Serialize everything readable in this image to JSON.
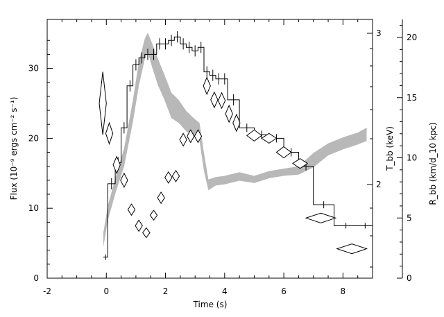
{
  "chart_data": {
    "type": "line",
    "title": "",
    "xlabel": "Time (s)",
    "xlim": [
      -2,
      9
    ],
    "xticks": [
      "-2",
      "0",
      "2",
      "4",
      "6",
      "8"
    ],
    "ylabel_left": "Flux (10⁻⁹ ergs cm⁻² s⁻¹)",
    "ylim_left": [
      0,
      37
    ],
    "yticks_left": [
      "0",
      "10",
      "20",
      "30"
    ],
    "ylabel_right_inner": "T_bb (keV)",
    "yticks_right_inner": [
      "2",
      "3"
    ],
    "yticks_right_inner_values": [
      2,
      3
    ],
    "ylabel_right_outer": "R_bb (km/d_10 kpc)",
    "ylim_right_outer": [
      0,
      21.5
    ],
    "yticks_right_outer": [
      "0",
      "5",
      "10",
      "15",
      "20"
    ],
    "series": [
      {
        "kind": "flux-histogram",
        "t_edges": [
          -0.1,
          0.05,
          0.3,
          0.5,
          0.7,
          0.9,
          1.1,
          1.3,
          1.5,
          1.7,
          1.9,
          2.1,
          2.3,
          2.5,
          2.7,
          2.9,
          3.1,
          3.3,
          3.5,
          3.7,
          3.9,
          4.1,
          4.5,
          5.0,
          5.5,
          6.0,
          6.5,
          7.0,
          7.7,
          8.5,
          9.0
        ],
        "values": [
          3,
          13.5,
          16.5,
          21.5,
          27.5,
          30.5,
          31.5,
          32,
          32,
          33.5,
          33.5,
          34,
          34.5,
          33.5,
          33,
          32.5,
          33,
          29.5,
          29,
          28.5,
          28.5,
          25.5,
          21.5,
          20.5,
          20,
          18,
          16,
          10.5,
          7.5,
          7.5
        ],
        "errors": [
          0.4,
          0.8,
          0.8,
          0.8,
          0.8,
          0.8,
          0.8,
          0.8,
          0.8,
          0.8,
          0.8,
          0.8,
          0.8,
          0.8,
          0.8,
          0.8,
          0.8,
          0.8,
          0.8,
          0.8,
          0.8,
          0.8,
          0.6,
          0.6,
          0.6,
          0.6,
          0.6,
          0.5,
          0.4,
          0.4
        ]
      },
      {
        "kind": "temperature-diamonds",
        "t": [
          -0.12,
          0.1,
          0.35,
          0.6,
          0.85,
          1.1,
          1.35,
          1.6,
          1.85,
          2.1,
          2.35,
          2.6,
          2.85,
          3.1,
          3.4,
          3.65,
          3.9,
          4.15,
          4.4,
          5.0,
          5.5,
          6.0,
          6.55,
          7.25,
          8.3
        ],
        "flux_equiv": [
          25,
          20.7,
          16.2,
          14,
          9.8,
          7.5,
          6.5,
          9,
          11.5,
          14.4,
          14.6,
          19.8,
          20.3,
          20.3,
          27.5,
          25.5,
          25.4,
          23.5,
          22.2,
          20.4,
          20,
          18,
          16.4,
          8.6,
          4.2
        ],
        "dt": [
          0.12,
          0.12,
          0.12,
          0.12,
          0.12,
          0.12,
          0.12,
          0.12,
          0.12,
          0.12,
          0.12,
          0.12,
          0.12,
          0.12,
          0.12,
          0.12,
          0.12,
          0.12,
          0.12,
          0.25,
          0.25,
          0.25,
          0.25,
          0.5,
          0.5
        ],
        "dy": [
          4.5,
          1.5,
          1.2,
          1,
          0.8,
          0.8,
          0.7,
          0.7,
          0.8,
          0.8,
          0.8,
          0.9,
          0.9,
          0.9,
          1.2,
          1.1,
          1.1,
          1.2,
          1.2,
          0.8,
          0.7,
          0.8,
          0.7,
          0.7,
          0.7
        ]
      },
      {
        "kind": "radius-band",
        "t": [
          -0.1,
          0.05,
          0.3,
          0.6,
          0.9,
          1.1,
          1.3,
          1.4,
          1.55,
          1.75,
          1.95,
          2.2,
          2.45,
          2.7,
          2.95,
          3.15,
          3.3,
          3.45,
          3.7,
          4.0,
          4.5,
          5.0,
          5.5,
          6.0,
          6.5,
          7.0,
          7.5,
          8.0,
          8.5,
          8.8
        ],
        "r_lower": [
          2.6,
          4.8,
          7.0,
          9.3,
          13.0,
          16.0,
          18.2,
          18.8,
          17.5,
          16.0,
          14.9,
          13.3,
          12.9,
          12.2,
          11.8,
          11.4,
          8.9,
          7.3,
          7.7,
          7.8,
          8.1,
          7.9,
          8.3,
          8.5,
          8.6,
          9.2,
          10.2,
          10.7,
          11.1,
          11.4
        ],
        "r_upper": [
          3.8,
          6.0,
          8.3,
          10.8,
          14.8,
          18.0,
          19.9,
          20.4,
          19.5,
          18.2,
          17.0,
          15.4,
          14.8,
          13.9,
          13.3,
          12.9,
          10.4,
          8.2,
          8.4,
          8.5,
          8.8,
          8.5,
          8.9,
          9.1,
          9.3,
          10.4,
          11.2,
          11.7,
          12.1,
          12.5
        ]
      }
    ]
  }
}
